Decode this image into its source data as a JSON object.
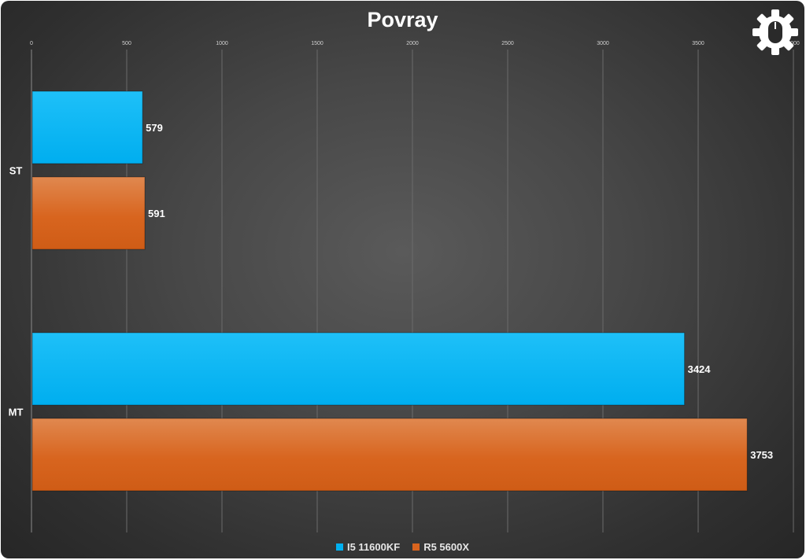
{
  "chart_data": {
    "type": "bar",
    "orientation": "horizontal",
    "title": "Povray",
    "categories": [
      "ST",
      "MT"
    ],
    "series": [
      {
        "name": "I5 11600KF",
        "values": [
          579,
          3424
        ],
        "color": "#00b0f0"
      },
      {
        "name": "R5 5600X",
        "values": [
          591,
          3753
        ],
        "color": "#d9641e"
      }
    ],
    "x_ticks": [
      "0",
      "500",
      "1000",
      "1500",
      "2000",
      "2500",
      "3000",
      "3500",
      "4000"
    ],
    "xlim": [
      0,
      4000
    ],
    "grid": true,
    "legend_position": "bottom",
    "data_labels": true
  },
  "logo": {
    "icon": "gear-mouse-icon"
  },
  "colors": {
    "background": "#474747",
    "text": "#ffffff",
    "gridline": "#6a6a6a"
  }
}
